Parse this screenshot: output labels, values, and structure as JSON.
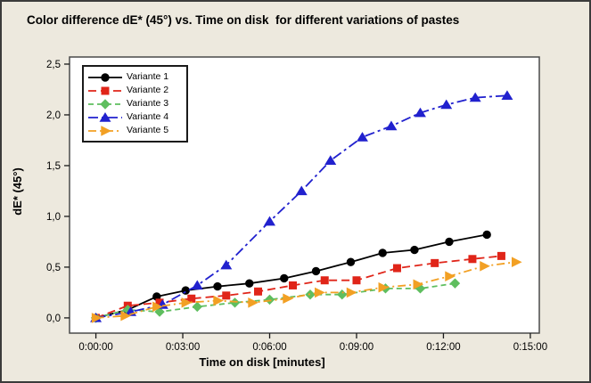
{
  "figure": {
    "background_color": "#EDE9DE",
    "plot_background": "#FFFFFF",
    "border_color": "#3B3B3B"
  },
  "chart_data": {
    "type": "line",
    "title": "Color difference dE* (45°) vs. Time on disk  for different variations of pastes",
    "xlabel": "Time on disk [minutes]",
    "ylabel": "dE* (45°)",
    "x_tick_labels": [
      "0:00:00",
      "0:03:00",
      "0:06:00",
      "0:09:00",
      "0:12:00",
      "0:15:00"
    ],
    "x_tick_values": [
      0,
      3,
      6,
      9,
      12,
      15
    ],
    "y_tick_labels": [
      "0,0",
      "0,5",
      "1,0",
      "1,5",
      "2,0",
      "2,5"
    ],
    "y_tick_values": [
      0,
      0.5,
      1,
      1.5,
      2,
      2.5
    ],
    "xlim": [
      -0.91,
      15.31
    ],
    "ylim": [
      -0.15,
      2.57
    ],
    "grid": false,
    "legend_position": "top-left",
    "series": [
      {
        "name": "Variante 1",
        "color": "#000000",
        "marker": "circle",
        "dash": "solid",
        "points": [
          [
            0,
            0
          ],
          [
            1.1,
            0.08
          ],
          [
            2.1,
            0.21
          ],
          [
            3.1,
            0.27
          ],
          [
            4.2,
            0.31
          ],
          [
            5.3,
            0.34
          ],
          [
            6.5,
            0.39
          ],
          [
            7.6,
            0.46
          ],
          [
            8.8,
            0.55
          ],
          [
            9.9,
            0.64
          ],
          [
            11.0,
            0.67
          ],
          [
            12.2,
            0.75
          ],
          [
            13.5,
            0.82
          ]
        ]
      },
      {
        "name": "Variante 2",
        "color": "#E02519",
        "marker": "square",
        "dash": "9,5",
        "points": [
          [
            0,
            0
          ],
          [
            1.1,
            0.12
          ],
          [
            2.2,
            0.15
          ],
          [
            3.3,
            0.19
          ],
          [
            4.5,
            0.22
          ],
          [
            5.6,
            0.26
          ],
          [
            6.8,
            0.32
          ],
          [
            7.9,
            0.37
          ],
          [
            9.0,
            0.37
          ],
          [
            10.4,
            0.49
          ],
          [
            11.7,
            0.54
          ],
          [
            13.0,
            0.58
          ],
          [
            14.0,
            0.61
          ]
        ]
      },
      {
        "name": "Variante 3",
        "color": "#5FBE5F",
        "marker": "diamond",
        "dash": "6,4",
        "points": [
          [
            0,
            0
          ],
          [
            1.1,
            0.08
          ],
          [
            2.2,
            0.06
          ],
          [
            3.5,
            0.11
          ],
          [
            4.8,
            0.15
          ],
          [
            6.0,
            0.18
          ],
          [
            7.4,
            0.23
          ],
          [
            8.5,
            0.23
          ],
          [
            10.0,
            0.29
          ],
          [
            11.2,
            0.29
          ],
          [
            12.4,
            0.34
          ]
        ]
      },
      {
        "name": "Variante 4",
        "color": "#2121CE",
        "marker": "triangle-up",
        "dash": "11,4,3,4",
        "points": [
          [
            0,
            0
          ],
          [
            1.2,
            0.06
          ],
          [
            2.3,
            0.13
          ],
          [
            3.5,
            0.32
          ],
          [
            4.5,
            0.52
          ],
          [
            6.0,
            0.95
          ],
          [
            7.1,
            1.25
          ],
          [
            8.1,
            1.55
          ],
          [
            9.2,
            1.78
          ],
          [
            10.2,
            1.89
          ],
          [
            11.2,
            2.02
          ],
          [
            12.1,
            2.1
          ],
          [
            13.1,
            2.17
          ],
          [
            14.2,
            2.19
          ]
        ]
      },
      {
        "name": "Variante 5",
        "color": "#F2A024",
        "marker": "triangle-right",
        "dash": "9,4,2,4",
        "points": [
          [
            0,
            0
          ],
          [
            1.0,
            0.02
          ],
          [
            2.1,
            0.11
          ],
          [
            3.1,
            0.15
          ],
          [
            4.2,
            0.17
          ],
          [
            5.4,
            0.15
          ],
          [
            6.6,
            0.19
          ],
          [
            7.7,
            0.25
          ],
          [
            8.8,
            0.25
          ],
          [
            9.9,
            0.3
          ],
          [
            11.1,
            0.33
          ],
          [
            12.2,
            0.41
          ],
          [
            13.4,
            0.51
          ],
          [
            14.5,
            0.55
          ]
        ]
      }
    ]
  }
}
